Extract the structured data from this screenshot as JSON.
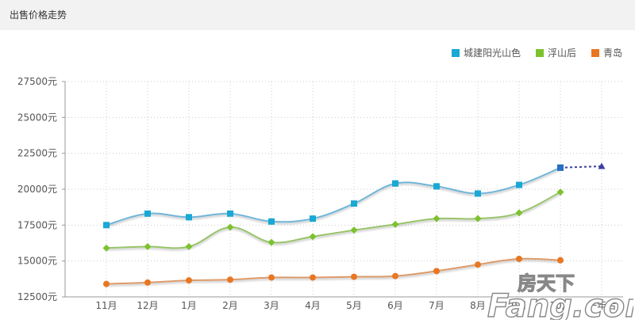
{
  "header": {
    "title": "出售价格走势"
  },
  "chart_data": {
    "type": "line",
    "categories": [
      "11月",
      "12月",
      "1月",
      "2月",
      "3月",
      "4月",
      "5月",
      "6月",
      "7月",
      "8月",
      "9月",
      "10月",
      "一年后"
    ],
    "ylim": [
      12500,
      27500
    ],
    "yticks": [
      12500,
      15000,
      17500,
      20000,
      22500,
      25000,
      27500
    ],
    "ytick_suffix": "元",
    "grid": true,
    "legend_position": "top-right",
    "series": [
      {
        "name": "城建阳光山色",
        "color": "#1aa8d4",
        "marker": "square",
        "values": [
          17500,
          18300,
          18050,
          18300,
          17750,
          17950,
          19000,
          20400,
          20200,
          19700,
          20300,
          21500,
          null
        ]
      },
      {
        "name": "浮山后",
        "color": "#7cc22e",
        "marker": "diamond",
        "values": [
          15900,
          16000,
          16000,
          17350,
          16300,
          16700,
          17150,
          17550,
          17950,
          17950,
          18350,
          19800,
          null
        ]
      },
      {
        "name": "青岛",
        "color": "#e87722",
        "marker": "circle",
        "values": [
          13400,
          13500,
          13650,
          13700,
          13850,
          13850,
          13900,
          13950,
          14300,
          14750,
          15150,
          15050,
          null
        ]
      }
    ],
    "forecast": {
      "color": "#3b3fa0",
      "from_index": 11,
      "to_index": 12,
      "values": [
        21500,
        21600
      ]
    }
  },
  "watermark": {
    "text": "房天下",
    "brand": "Fang.com"
  }
}
